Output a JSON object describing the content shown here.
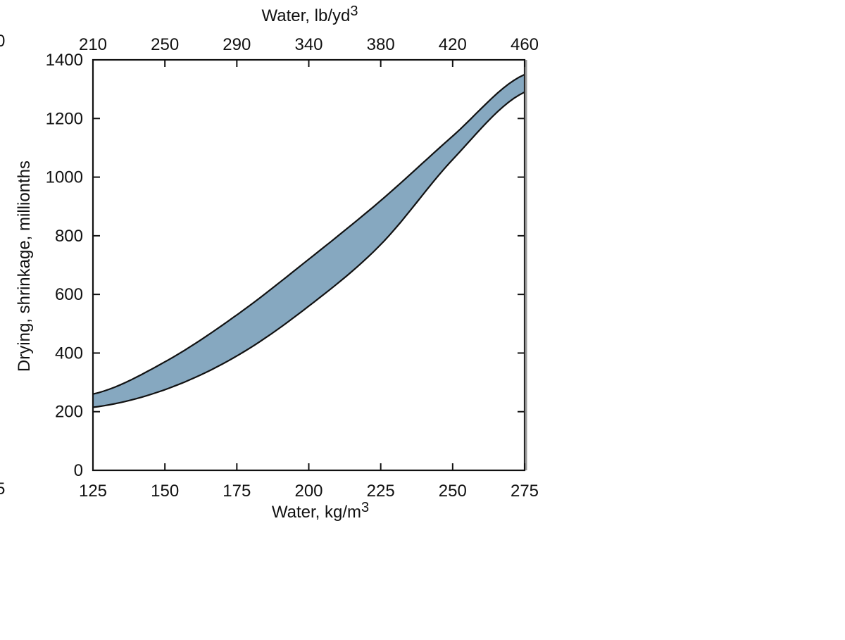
{
  "chart_data": {
    "type": "area",
    "x_top_label": "Water, lb/yd",
    "x_top_label_sup": "3",
    "x_bottom_label": "Water, kg/m",
    "x_bottom_label_sup": "3",
    "y_label": "Drying, shrinkage, millionths",
    "xlim": [
      125,
      275
    ],
    "ylim": [
      0,
      1400
    ],
    "x_ticks": [
      125,
      150,
      175,
      200,
      225,
      250,
      275
    ],
    "x_tick_labels": [
      "125",
      "150",
      "175",
      "200",
      "225",
      "250",
      "275"
    ],
    "x_top_ticks": [
      210,
      250,
      290,
      340,
      380,
      420,
      460
    ],
    "x_top_tick_labels": [
      "210",
      "250",
      "290",
      "340",
      "380",
      "420",
      "460"
    ],
    "y_ticks": [
      0,
      200,
      400,
      600,
      800,
      1000,
      1200,
      1400
    ],
    "y_tick_labels": [
      "0",
      "200",
      "400",
      "600",
      "800",
      "1000",
      "1200",
      "1400"
    ],
    "band": {
      "x": [
        125,
        150,
        175,
        200,
        225,
        250,
        275
      ],
      "upper": [
        260,
        370,
        530,
        720,
        920,
        1140,
        1350
      ],
      "lower": [
        215,
        275,
        390,
        560,
        770,
        1060,
        1290
      ]
    },
    "fill_color": "#86a8c0",
    "stroke_color": "#111111",
    "grid": false,
    "left_edge_fragments": [
      "0",
      "5"
    ]
  }
}
